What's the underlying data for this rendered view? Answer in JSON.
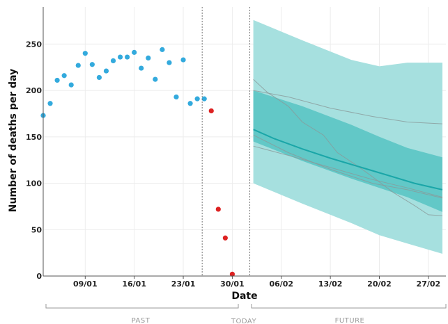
{
  "chart_data": {
    "type": "scatter",
    "xlabel": "Date",
    "ylabel": "Number of deaths per day",
    "x_ticks": [
      "09/01",
      "16/01",
      "23/01",
      "30/01",
      "06/02",
      "13/02",
      "20/02",
      "27/02"
    ],
    "x_tick_days": [
      9,
      16,
      23,
      30,
      37,
      44,
      51,
      58
    ],
    "y_ticks": [
      0,
      50,
      100,
      150,
      200,
      250
    ],
    "xlim": [
      3,
      60.5
    ],
    "ylim": [
      0,
      290
    ],
    "today_day": 32.5,
    "data_cutoff_day": 25.7,
    "periods": {
      "past": "PAST",
      "today": "TODAY",
      "future": "FUTURE"
    },
    "colors": {
      "observed": "#33aadd",
      "incomplete": "#dd2222",
      "band_outer": "#a6e0df",
      "band_inner": "#62c8c7",
      "median": "#1aa6a8",
      "scenario": "#8a9a9a"
    },
    "series": [
      {
        "role": "observed",
        "x": [
          3,
          4,
          5,
          6,
          7,
          8,
          9,
          10,
          11,
          12,
          13,
          14,
          15,
          16,
          17,
          18,
          19,
          20,
          21,
          22,
          23,
          24,
          25,
          26
        ],
        "y": [
          173,
          186,
          211,
          216,
          206,
          227,
          240,
          228,
          214,
          221,
          232,
          236,
          236,
          241,
          224,
          235,
          212,
          244,
          230,
          193,
          233,
          186,
          191,
          191
        ]
      },
      {
        "role": "incomplete",
        "x": [
          27,
          28,
          29,
          30
        ],
        "y": [
          178,
          72,
          41,
          2
        ]
      },
      {
        "role": "band_outer",
        "x": [
          33,
          40,
          47,
          51,
          55,
          60
        ],
        "upper": [
          276,
          254,
          233,
          226,
          230,
          230
        ],
        "lower": [
          100,
          78,
          57,
          44,
          35,
          24
        ]
      },
      {
        "role": "band_inner",
        "x": [
          33,
          40,
          47,
          51,
          55,
          60
        ],
        "upper": [
          200,
          183,
          163,
          150,
          138,
          128
        ],
        "lower": [
          145,
          124,
          105,
          95,
          85,
          69
        ]
      },
      {
        "role": "median",
        "x": [
          33,
          36,
          40,
          44,
          48,
          52,
          56,
          60
        ],
        "y": [
          158,
          148,
          137,
          127,
          118,
          109,
          100,
          93
        ]
      },
      {
        "role": "scenario",
        "x": [
          33,
          38,
          44,
          50,
          55,
          60
        ],
        "y": [
          200,
          193,
          181,
          172,
          166,
          164
        ]
      },
      {
        "role": "scenario",
        "x": [
          33,
          35,
          38,
          40,
          43,
          45,
          48,
          50,
          53,
          56,
          58,
          60
        ],
        "y": [
          212,
          198,
          183,
          166,
          152,
          133,
          118,
          107,
          90,
          76,
          66,
          65
        ]
      },
      {
        "role": "scenario",
        "x": [
          33,
          38,
          44,
          50,
          55,
          60
        ],
        "y": [
          152,
          133,
          115,
          100,
          93,
          84
        ]
      },
      {
        "role": "scenario",
        "x": [
          33,
          38,
          44,
          50,
          55,
          60
        ],
        "y": [
          140,
          130,
          117,
          104,
          95,
          85
        ]
      }
    ]
  }
}
